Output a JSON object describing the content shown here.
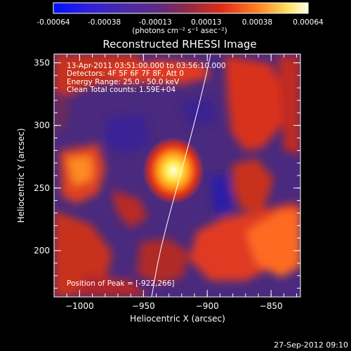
{
  "colorbar": {
    "tick_labels": [
      "-0.00064",
      "-0.00038",
      "-0.00013",
      "0.00013",
      "0.00038",
      "0.00064"
    ],
    "units_label": "(photons cm⁻² s⁻¹ asec⁻²)",
    "colors": [
      "#1010ff",
      "#3a1fd0",
      "#5b2a9c",
      "#7a2a70",
      "#b02a2a",
      "#ff3a10",
      "#ff9a20",
      "#ffe060",
      "#ffffe8"
    ]
  },
  "plot": {
    "title": "Reconstructed RHESSI Image",
    "xlabel": "Heliocentric X (arcsec)",
    "ylabel": "Heliocentric Y (arcsec)",
    "xlim": [
      -1020,
      -827
    ],
    "ylim": [
      163,
      357
    ],
    "x_ticks": [
      {
        "value": -1000,
        "label": "−1000"
      },
      {
        "value": -950,
        "label": "−950"
      },
      {
        "value": -900,
        "label": "−900"
      },
      {
        "value": -850,
        "label": "−850"
      }
    ],
    "y_ticks": [
      {
        "value": 350,
        "label": "350"
      },
      {
        "value": 300,
        "label": "300"
      },
      {
        "value": 250,
        "label": "250"
      },
      {
        "value": 200,
        "label": "200"
      }
    ],
    "info_lines": [
      "13-Apr-2011 03:51:00.000 to 03:56:10.000",
      "Detectors: 4F 5F 6F 7F 8F, Att 0",
      "Energy Range: 25.0 - 50.0 keV",
      "Clean     Total counts: 1.59E+04"
    ],
    "peak_label": "Position of Peak = [-922,266]"
  },
  "footer": {
    "date": "27-Sep-2012 09:10"
  }
}
